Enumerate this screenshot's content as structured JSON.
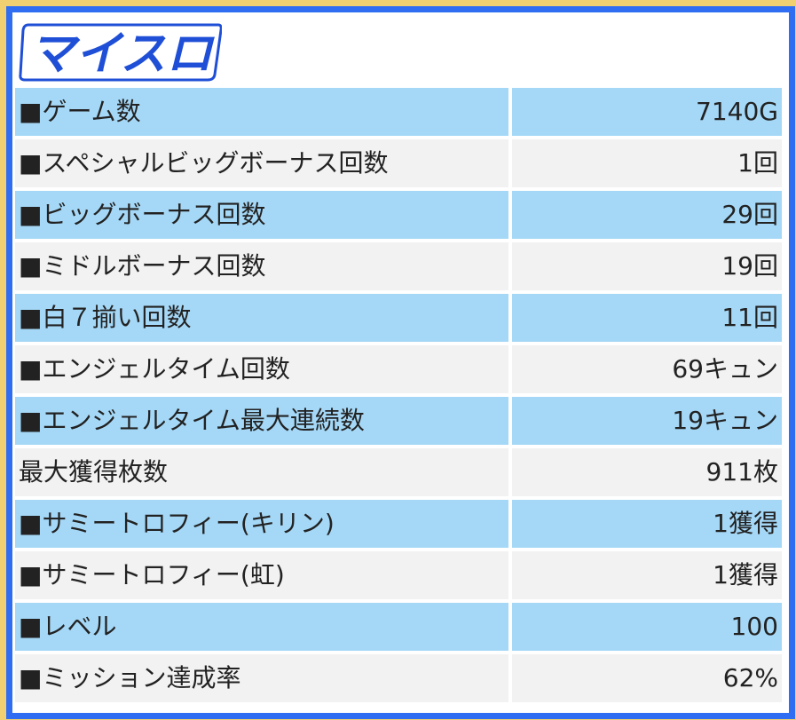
{
  "brand": {
    "logo_text": "マイスロ",
    "colors": {
      "frame": "#2f6ef2",
      "outer": "#f0d070",
      "row_blue": "#a5d8f7",
      "row_gray": "#f2f2f2",
      "logo_fill": "#1f4fd6"
    }
  },
  "stats": [
    {
      "label": "■ゲーム数",
      "value": "7140G",
      "theme": "blue"
    },
    {
      "label": "■スペシャルビッグボーナス回数",
      "value": "1回",
      "theme": "gray"
    },
    {
      "label": "■ビッグボーナス回数",
      "value": "29回",
      "theme": "blue"
    },
    {
      "label": "■ミドルボーナス回数",
      "value": "19回",
      "theme": "gray"
    },
    {
      "label": "■白７揃い回数",
      "value": "11回",
      "theme": "blue"
    },
    {
      "label": "■エンジェルタイム回数",
      "value": "69キュン",
      "theme": "gray"
    },
    {
      "label": "■エンジェルタイム最大連続数",
      "value": "19キュン",
      "theme": "blue"
    },
    {
      "label": "最大獲得枚数",
      "value": "911枚",
      "theme": "gray"
    },
    {
      "label": "■サミートロフィー(キリン)",
      "value": "1獲得",
      "theme": "blue"
    },
    {
      "label": "■サミートロフィー(虹)",
      "value": "1獲得",
      "theme": "gray"
    },
    {
      "label": "■レベル",
      "value": "100",
      "theme": "blue"
    },
    {
      "label": "■ミッション達成率",
      "value": "62%",
      "theme": "gray"
    }
  ]
}
